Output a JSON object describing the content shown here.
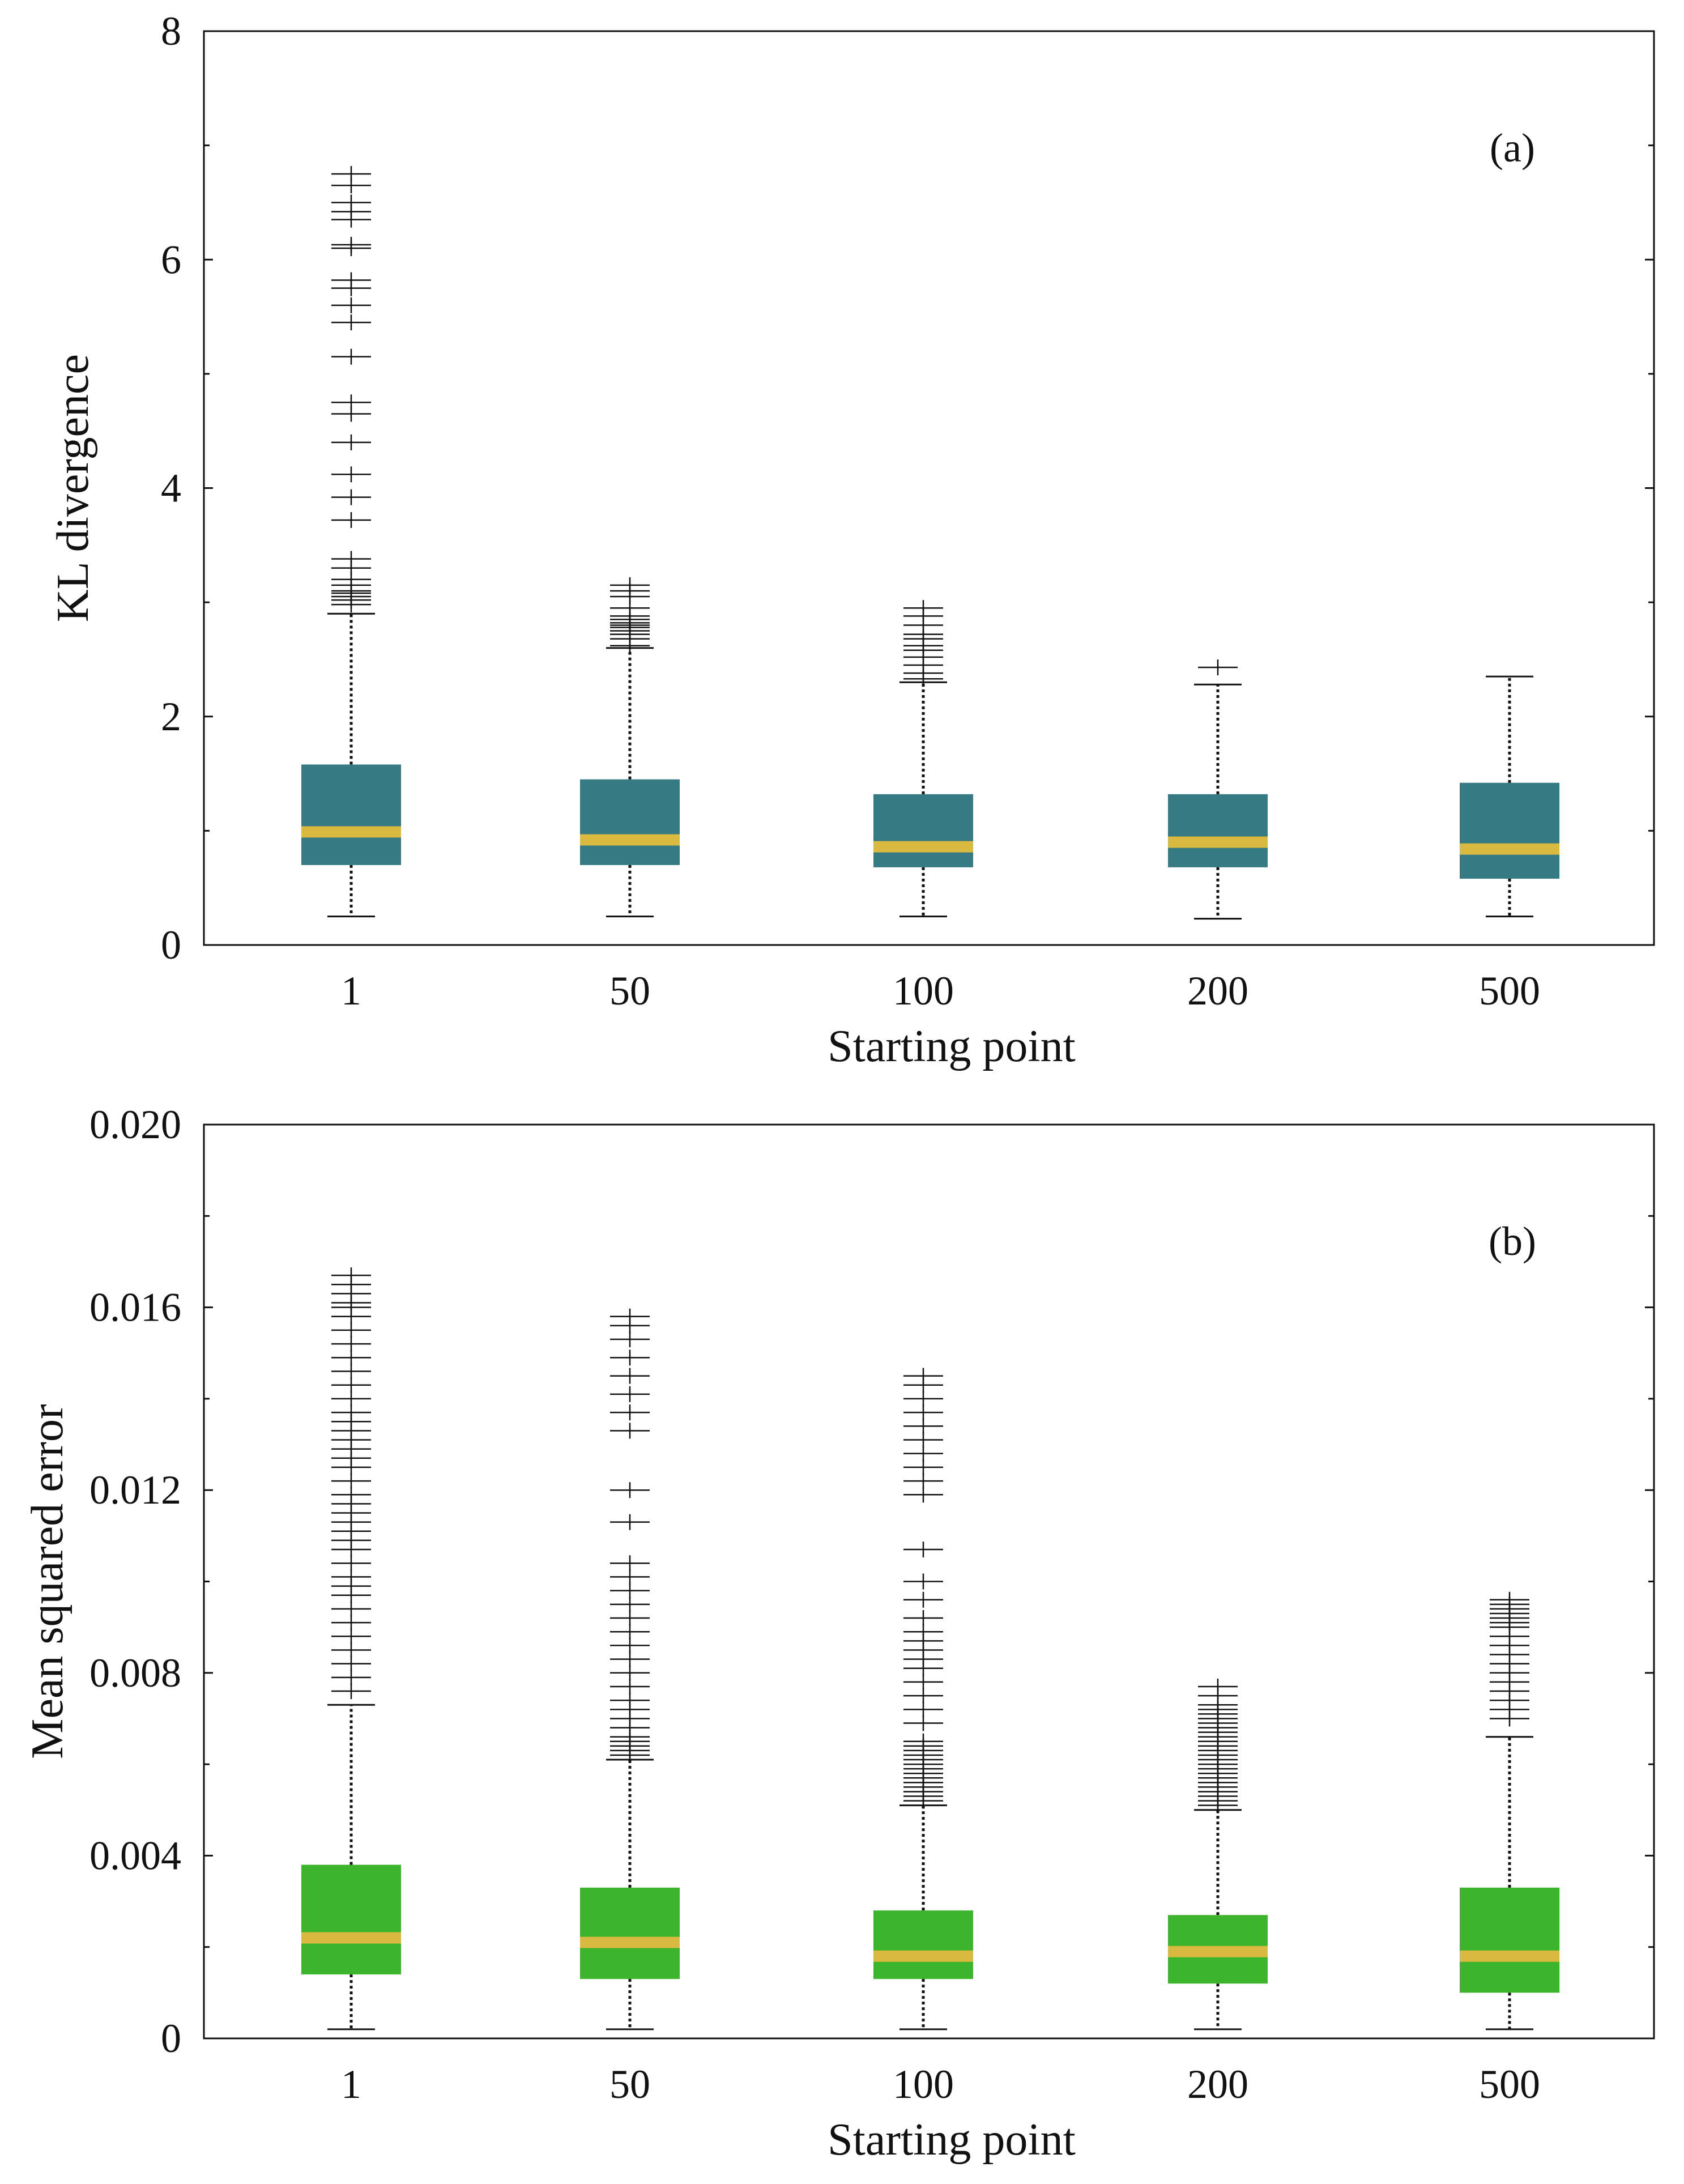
{
  "chart_data": [
    {
      "type": "box",
      "panel_label": "(a)",
      "xlabel": "Starting point",
      "ylabel": "KL divergence",
      "ylim": [
        0,
        8
      ],
      "yticks": [
        0,
        2,
        4,
        6,
        8
      ],
      "ytick_labels": [
        "0",
        "2",
        "4",
        "6",
        "8"
      ],
      "categories": [
        "1",
        "50",
        "100",
        "200",
        "500"
      ],
      "colors": {
        "box": "#367a84",
        "median": "#d9b93f",
        "whisker": "#111111",
        "outlier": "#111111"
      },
      "boxes": [
        {
          "whisker_low": 0.25,
          "q1": 0.7,
          "median": 0.99,
          "q3": 1.58,
          "whisker_high": 2.9,
          "outliers": [
            2.98,
            3.02,
            3.05,
            3.08,
            3.1,
            3.15,
            3.2,
            3.3,
            3.38,
            3.72,
            3.92,
            4.12,
            4.4,
            4.65,
            4.75,
            5.15,
            5.45,
            5.6,
            5.75,
            5.82,
            6.1,
            6.13,
            6.35,
            6.42,
            6.5,
            6.65,
            6.75
          ]
        },
        {
          "whisker_low": 0.25,
          "q1": 0.7,
          "median": 0.92,
          "q3": 1.45,
          "whisker_high": 2.6,
          "outliers": [
            2.62,
            2.68,
            2.72,
            2.75,
            2.78,
            2.8,
            2.82,
            2.85,
            2.88,
            2.95,
            3.05,
            3.1,
            3.15
          ]
        },
        {
          "whisker_low": 0.25,
          "q1": 0.68,
          "median": 0.86,
          "q3": 1.32,
          "whisker_high": 2.3,
          "outliers": [
            2.33,
            2.38,
            2.45,
            2.52,
            2.58,
            2.62,
            2.68,
            2.72,
            2.8,
            2.88,
            2.95
          ]
        },
        {
          "whisker_low": 0.23,
          "q1": 0.68,
          "median": 0.9,
          "q3": 1.32,
          "whisker_high": 2.28,
          "outliers": [
            2.43
          ]
        },
        {
          "whisker_low": 0.25,
          "q1": 0.58,
          "median": 0.84,
          "q3": 1.42,
          "whisker_high": 2.35,
          "outliers": []
        }
      ]
    },
    {
      "type": "box",
      "panel_label": "(b)",
      "xlabel": "Starting point",
      "ylabel": "Mean squared error",
      "ylim": [
        0,
        0.02
      ],
      "yticks": [
        0,
        0.004,
        0.008,
        0.012,
        0.016,
        0.02
      ],
      "ytick_labels": [
        "0",
        "0.004",
        "0.008",
        "0.012",
        "0.016",
        "0.020"
      ],
      "categories": [
        "1",
        "50",
        "100",
        "200",
        "500"
      ],
      "colors": {
        "box": "#3cb52c",
        "median": "#d9b93f",
        "whisker": "#111111",
        "outlier": "#111111"
      },
      "boxes": [
        {
          "whisker_low": 0.0002,
          "q1": 0.0014,
          "median": 0.0022,
          "q3": 0.0038,
          "whisker_high": 0.0073,
          "outliers": [
            0.0076,
            0.0079,
            0.0082,
            0.0085,
            0.0088,
            0.0091,
            0.0094,
            0.0097,
            0.0099,
            0.0101,
            0.0104,
            0.0107,
            0.0109,
            0.0111,
            0.0113,
            0.0115,
            0.0117,
            0.0119,
            0.0122,
            0.0125,
            0.0127,
            0.0129,
            0.0131,
            0.0133,
            0.0135,
            0.0137,
            0.014,
            0.0143,
            0.0146,
            0.0149,
            0.0152,
            0.0155,
            0.0158,
            0.016,
            0.0161,
            0.0163,
            0.0165,
            0.0167
          ]
        },
        {
          "whisker_low": 0.0002,
          "q1": 0.0013,
          "median": 0.0021,
          "q3": 0.0033,
          "whisker_high": 0.0061,
          "outliers": [
            0.0062,
            0.0063,
            0.0064,
            0.0065,
            0.0066,
            0.0068,
            0.007,
            0.0072,
            0.0074,
            0.0077,
            0.008,
            0.0083,
            0.0086,
            0.0089,
            0.0092,
            0.0095,
            0.0098,
            0.0101,
            0.0104,
            0.0113,
            0.012,
            0.0133,
            0.0137,
            0.0141,
            0.0145,
            0.0149,
            0.0153,
            0.0156,
            0.0158
          ]
        },
        {
          "whisker_low": 0.0002,
          "q1": 0.0013,
          "median": 0.0018,
          "q3": 0.0028,
          "whisker_high": 0.0051,
          "outliers": [
            0.0052,
            0.0053,
            0.0054,
            0.0055,
            0.0056,
            0.0057,
            0.0058,
            0.0059,
            0.006,
            0.0061,
            0.0062,
            0.0063,
            0.0064,
            0.0065,
            0.0069,
            0.0072,
            0.0075,
            0.0078,
            0.0081,
            0.0083,
            0.0085,
            0.0087,
            0.0089,
            0.0092,
            0.0096,
            0.01,
            0.0107,
            0.0119,
            0.0122,
            0.0125,
            0.0128,
            0.0131,
            0.0134,
            0.0137,
            0.014,
            0.0143,
            0.0145
          ]
        },
        {
          "whisker_low": 0.0002,
          "q1": 0.0012,
          "median": 0.0019,
          "q3": 0.0027,
          "whisker_high": 0.005,
          "outliers": [
            0.0051,
            0.0052,
            0.0053,
            0.0054,
            0.0055,
            0.0056,
            0.0057,
            0.0058,
            0.0059,
            0.006,
            0.0061,
            0.0062,
            0.0063,
            0.0064,
            0.0065,
            0.0066,
            0.0067,
            0.0068,
            0.0069,
            0.007,
            0.0071,
            0.0072,
            0.0073,
            0.0075,
            0.0077
          ]
        },
        {
          "whisker_low": 0.0002,
          "q1": 0.001,
          "median": 0.0018,
          "q3": 0.0033,
          "whisker_high": 0.0066,
          "outliers": [
            0.007,
            0.0072,
            0.0074,
            0.0076,
            0.0078,
            0.008,
            0.0082,
            0.0084,
            0.0086,
            0.0088,
            0.009,
            0.0091,
            0.0092,
            0.0093,
            0.0094,
            0.0095,
            0.0096
          ]
        }
      ]
    }
  ]
}
